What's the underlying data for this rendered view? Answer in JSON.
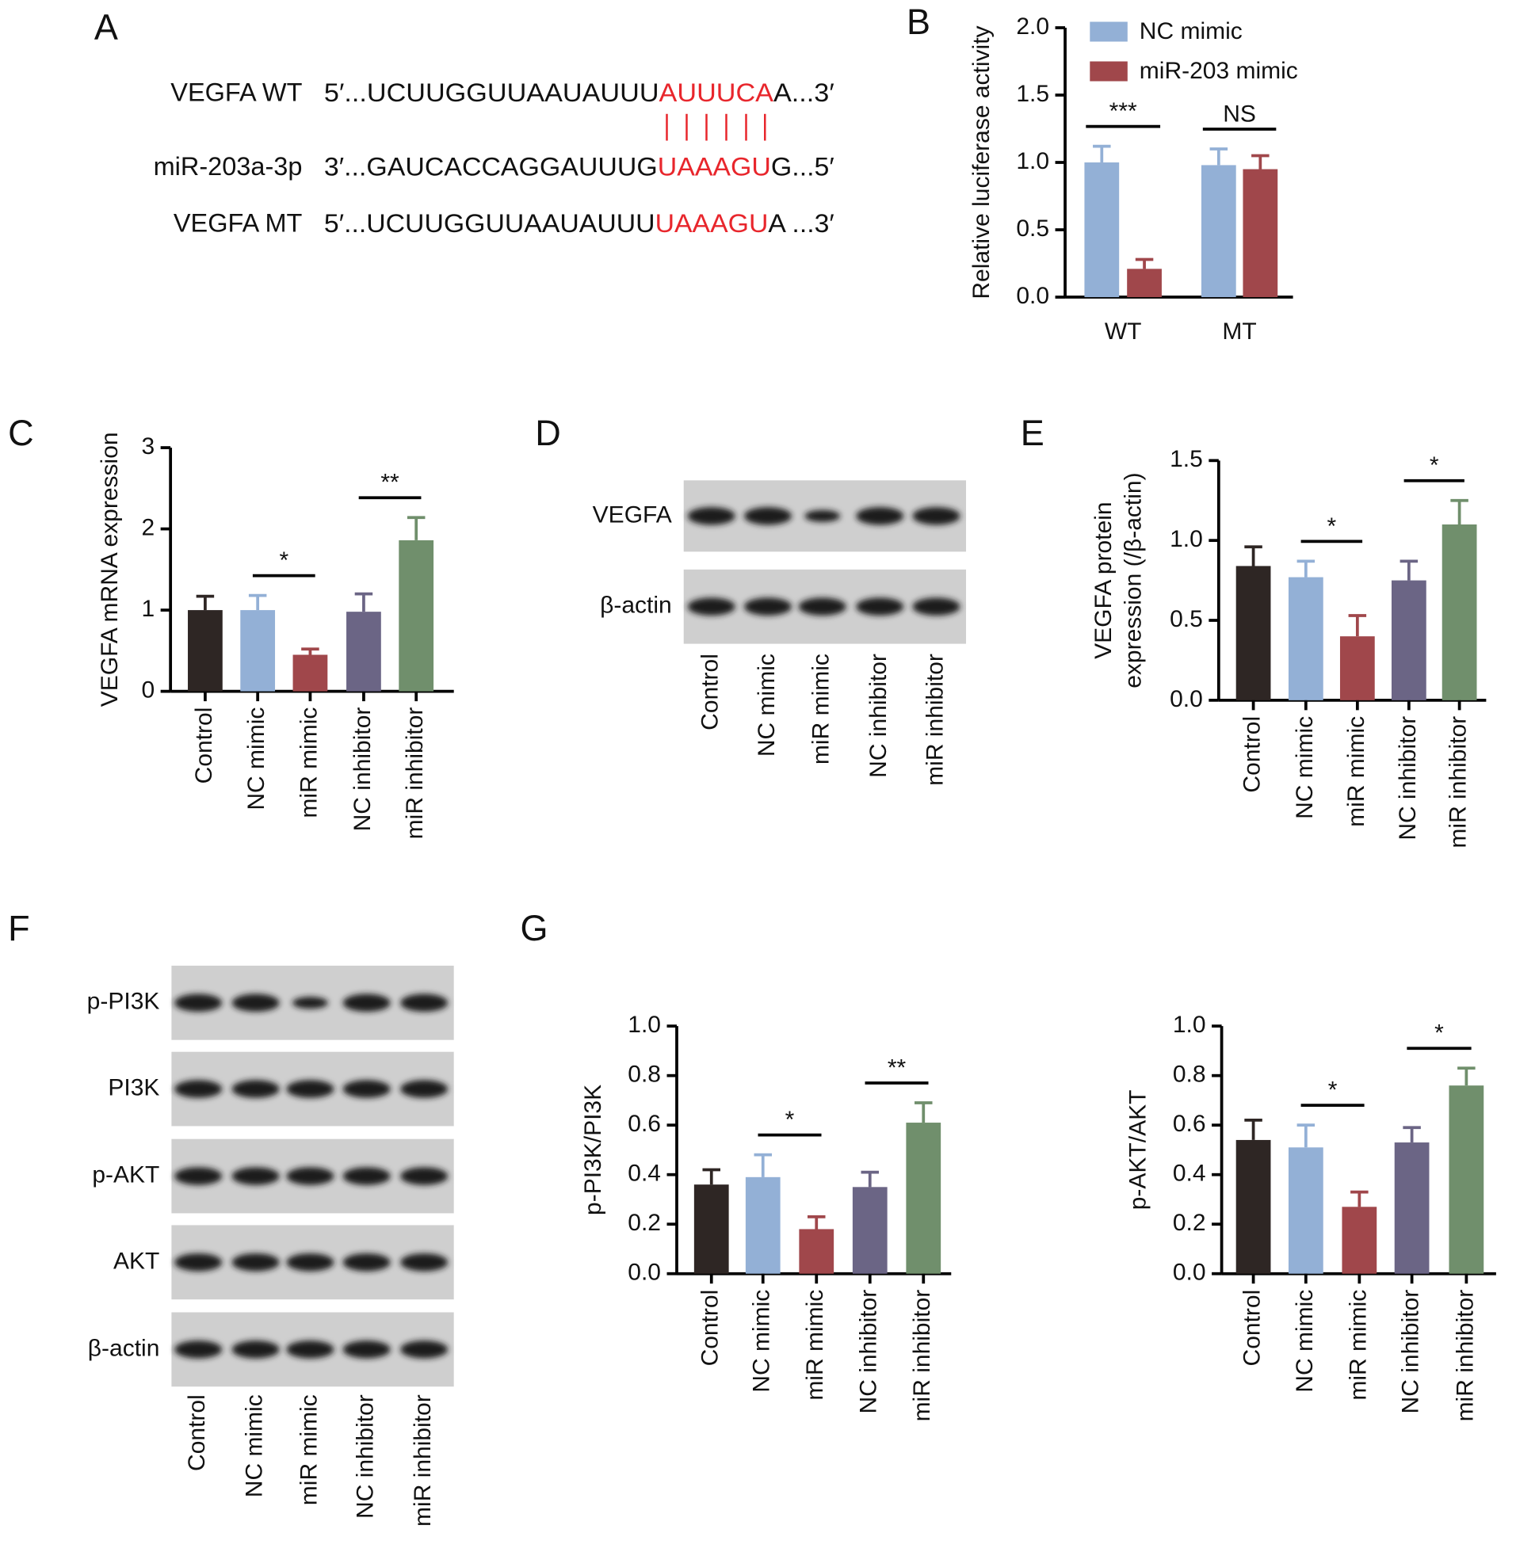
{
  "panel_labels": [
    "A",
    "B",
    "C",
    "D",
    "E",
    "F",
    "G"
  ],
  "sequences": [
    {
      "label": "VEGFA WT",
      "prefix": "5′...UCUUGGUUAAUAUUU",
      "highlight": "AUUUCA",
      "suffix": "A...3′"
    },
    {
      "label": "miR-203a-3p",
      "prefix": "3′...GAUCACCAGGAUUUG",
      "highlight": "UAAAGU",
      "suffix": "G...5′"
    },
    {
      "label": "VEGFA MT",
      "prefix": "5′...UCUUGGUUAAUAUUU",
      "highlight": "UAAAGU",
      "suffix": "A ...3′"
    }
  ],
  "blot_d": {
    "bands": [
      "VEGFA",
      "β-actin"
    ],
    "lanes": [
      "Control",
      "NC mimic",
      "miR mimic",
      "NC inhibitor",
      "miR inhibitor"
    ]
  },
  "blot_f": {
    "bands": [
      "p-PI3K",
      "PI3K",
      "p-AKT",
      "AKT",
      "β-actin"
    ],
    "lanes": [
      "Control",
      "NC mimic",
      "miR mimic",
      "NC inhibitor",
      "miR inhibitor"
    ]
  },
  "chart_data": [
    {
      "type": "grouped-bar",
      "ylabel": "Relative luciferase activity",
      "categories": [
        "WT",
        "MT"
      ],
      "series": [
        {
          "name": "NC mimic",
          "color": "#93b0d6",
          "values": [
            1.0,
            0.98
          ],
          "errors": [
            0.12,
            0.12
          ]
        },
        {
          "name": "miR-203 mimic",
          "color": "#a0474b",
          "values": [
            0.21,
            0.95
          ],
          "errors": [
            0.07,
            0.1
          ]
        }
      ],
      "ylim": [
        0,
        2
      ],
      "yticks": [
        {
          "value": 0,
          "label": "0.0"
        },
        {
          "value": 0.5,
          "label": "0.5"
        },
        {
          "value": 1,
          "label": "1.0"
        },
        {
          "value": 1.5,
          "label": "1.5"
        },
        {
          "value": 2,
          "label": "2.0"
        }
      ],
      "annotations": [
        "***",
        "NS"
      ]
    },
    {
      "type": "bar",
      "ylabel": [
        "VEGFA mRNA expression"
      ],
      "categories": [
        "Control",
        "NC mimic",
        "miR mimic",
        "NC inhibitor",
        "miR inhibitor"
      ],
      "values": [
        1.0,
        1.0,
        0.45,
        0.98,
        1.86
      ],
      "errors": [
        0.17,
        0.18,
        0.07,
        0.22,
        0.28
      ],
      "colors": [
        "#2e2624",
        "#93b0d6",
        "#a0474b",
        "#6b6585",
        "#708f6c"
      ],
      "ylim": [
        0,
        3
      ],
      "yticks": [
        0,
        1,
        2,
        3
      ],
      "annotations": [
        "*",
        "**"
      ]
    },
    {
      "type": "bar",
      "ylabel": [
        "VEGFA protein",
        "expression (/β-actin)"
      ],
      "categories": [
        "Control",
        "NC mimic",
        "miR mimic",
        "NC inhibitor",
        "miR inhibitor"
      ],
      "values": [
        0.84,
        0.77,
        0.4,
        0.75,
        1.1
      ],
      "errors": [
        0.12,
        0.1,
        0.13,
        0.12,
        0.15
      ],
      "colors": [
        "#2e2624",
        "#93b0d6",
        "#a0474b",
        "#6b6585",
        "#708f6c"
      ],
      "ylim": [
        0,
        1.5
      ],
      "yticks": [
        {
          "value": 0,
          "label": "0.0"
        },
        {
          "value": 0.5,
          "label": "0.5"
        },
        {
          "value": 1,
          "label": "1.0"
        },
        {
          "value": 1.5,
          "label": "1.5"
        }
      ],
      "annotations": [
        "*",
        "*"
      ]
    },
    {
      "type": "bar",
      "ylabel": [
        "p-PI3K/PI3K"
      ],
      "categories": [
        "Control",
        "NC mimic",
        "miR mimic",
        "NC inhibitor",
        "miR inhibitor"
      ],
      "values": [
        0.36,
        0.39,
        0.18,
        0.35,
        0.61
      ],
      "errors": [
        0.06,
        0.09,
        0.05,
        0.06,
        0.08
      ],
      "colors": [
        "#2e2624",
        "#93b0d6",
        "#a0474b",
        "#6b6585",
        "#708f6c"
      ],
      "ylim": [
        0,
        1
      ],
      "yticks": [
        {
          "value": 0,
          "label": "0.0"
        },
        {
          "value": 0.2,
          "label": "0.2"
        },
        {
          "value": 0.4,
          "label": "0.4"
        },
        {
          "value": 0.6,
          "label": "0.6"
        },
        {
          "value": 0.8,
          "label": "0.8"
        },
        {
          "value": 1,
          "label": "1.0"
        }
      ],
      "annotations": [
        "*",
        "**"
      ]
    },
    {
      "type": "bar",
      "ylabel": [
        "p-AKT/AKT"
      ],
      "categories": [
        "Control",
        "NC mimic",
        "miR mimic",
        "NC inhibitor",
        "miR inhibitor"
      ],
      "values": [
        0.54,
        0.51,
        0.27,
        0.53,
        0.76
      ],
      "errors": [
        0.08,
        0.09,
        0.06,
        0.06,
        0.07
      ],
      "colors": [
        "#2e2624",
        "#93b0d6",
        "#a0474b",
        "#6b6585",
        "#708f6c"
      ],
      "ylim": [
        0,
        1
      ],
      "yticks": [
        {
          "value": 0,
          "label": "0.0"
        },
        {
          "value": 0.2,
          "label": "0.2"
        },
        {
          "value": 0.4,
          "label": "0.4"
        },
        {
          "value": 0.6,
          "label": "0.6"
        },
        {
          "value": 0.8,
          "label": "0.8"
        },
        {
          "value": 1,
          "label": "1.0"
        }
      ],
      "annotations": [
        "*",
        "*"
      ]
    }
  ]
}
